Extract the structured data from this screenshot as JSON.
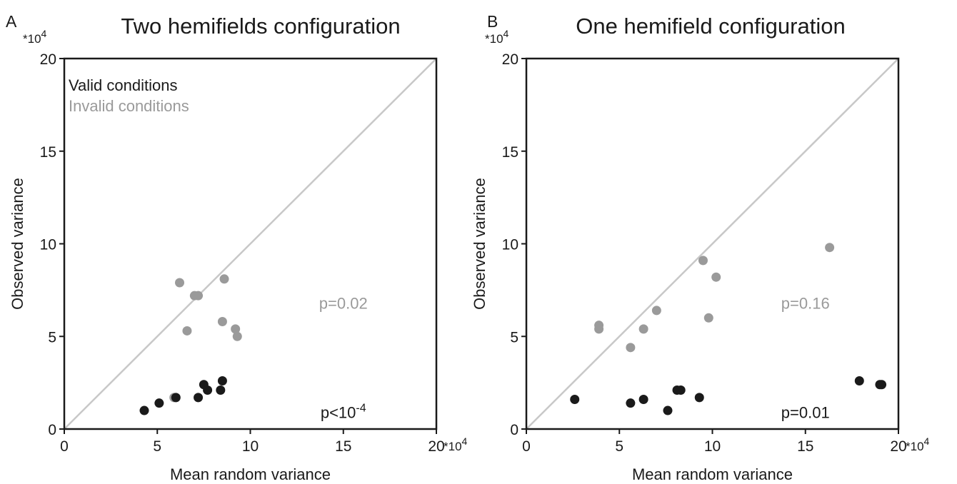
{
  "chart_data": [
    {
      "type": "scatter",
      "panel_label": "A",
      "title": "Two hemifields configuration",
      "xlabel": "Mean random variance",
      "ylabel": "Observed variance",
      "x_multiplier_label": "*10",
      "y_multiplier_label": "*10",
      "multiplier_exponent": "4",
      "xlim": [
        0,
        20
      ],
      "ylim": [
        0,
        20
      ],
      "xticks": [
        "0",
        "5",
        "10",
        "15",
        "20"
      ],
      "yticks": [
        "0",
        "5",
        "10",
        "15",
        "20"
      ],
      "diagonal": true,
      "legend": {
        "placement": "top-left",
        "entries": [
          {
            "label": "Valid conditions",
            "color": "#1a1a1a"
          },
          {
            "label": "Invalid conditions",
            "color": "#9a9a9a"
          }
        ]
      },
      "annotations": [
        {
          "text_base": "p=0.02",
          "sup": "",
          "color": "#9a9a9a",
          "x": 15,
          "y": 6.5
        },
        {
          "text_base": "p<10",
          "sup": "-4",
          "color": "#1a1a1a",
          "x": 15,
          "y": 0.6
        }
      ],
      "series": [
        {
          "name": "Invalid conditions",
          "color": "#9a9a9a",
          "points": [
            [
              6.2,
              7.9
            ],
            [
              7.0,
              7.2
            ],
            [
              7.2,
              7.2
            ],
            [
              8.6,
              8.1
            ],
            [
              6.6,
              5.3
            ],
            [
              8.5,
              5.8
            ],
            [
              9.2,
              5.4
            ],
            [
              9.3,
              5.0
            ],
            [
              5.9,
              1.7
            ]
          ]
        },
        {
          "name": "Valid conditions",
          "color": "#1a1a1a",
          "points": [
            [
              4.3,
              1.0
            ],
            [
              5.1,
              1.4
            ],
            [
              6.0,
              1.7
            ],
            [
              7.2,
              1.7
            ],
            [
              7.5,
              2.4
            ],
            [
              7.7,
              2.1
            ],
            [
              8.5,
              2.6
            ],
            [
              8.4,
              2.1
            ]
          ]
        }
      ]
    },
    {
      "type": "scatter",
      "panel_label": "B",
      "title": "One hemifield configuration",
      "xlabel": "Mean random variance",
      "ylabel": "Observed variance",
      "x_multiplier_label": "*10",
      "y_multiplier_label": "*10",
      "multiplier_exponent": "4",
      "xlim": [
        0,
        20
      ],
      "ylim": [
        0,
        20
      ],
      "xticks": [
        "0",
        "5",
        "10",
        "15",
        "20"
      ],
      "yticks": [
        "0",
        "5",
        "10",
        "15",
        "20"
      ],
      "diagonal": true,
      "annotations": [
        {
          "text_base": "p=0.16",
          "sup": "",
          "color": "#9a9a9a",
          "x": 15,
          "y": 6.5
        },
        {
          "text_base": "p=0.01",
          "sup": "",
          "color": "#1a1a1a",
          "x": 15,
          "y": 0.6
        }
      ],
      "series": [
        {
          "name": "Invalid conditions",
          "color": "#9a9a9a",
          "points": [
            [
              3.9,
              5.6
            ],
            [
              3.9,
              5.4
            ],
            [
              5.6,
              4.4
            ],
            [
              6.3,
              5.4
            ],
            [
              7.0,
              6.4
            ],
            [
              9.5,
              9.1
            ],
            [
              10.2,
              8.2
            ],
            [
              9.8,
              6.0
            ],
            [
              16.3,
              9.8
            ]
          ]
        },
        {
          "name": "Valid conditions",
          "color": "#1a1a1a",
          "points": [
            [
              2.6,
              1.6
            ],
            [
              5.6,
              1.4
            ],
            [
              6.3,
              1.6
            ],
            [
              7.6,
              1.0
            ],
            [
              8.1,
              2.1
            ],
            [
              8.3,
              2.1
            ],
            [
              9.3,
              1.7
            ],
            [
              17.9,
              2.6
            ],
            [
              19.0,
              2.4
            ],
            [
              19.1,
              2.4
            ]
          ]
        }
      ]
    }
  ]
}
